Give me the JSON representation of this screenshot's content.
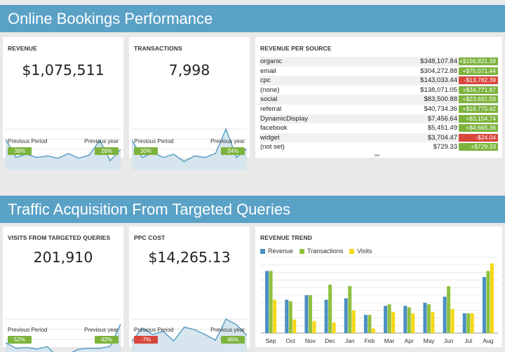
{
  "section1": {
    "title": "Online Bookings Performance"
  },
  "section2": {
    "title": "Traffic Acquisition From Targeted Queries"
  },
  "colors": {
    "header": "#5aa1c6",
    "spark_line": "#5d9fc4",
    "spark_fill": "#d6e5ee",
    "positive": "#7cb33c",
    "negative": "#d9463b",
    "revenue": "#4a8fc2",
    "transactions": "#8fc13e",
    "visits": "#f5d816"
  },
  "revenue": {
    "title": "REVENUE",
    "value": "$1,075,511",
    "prev_period_label": "Previous Period",
    "prev_period_value": "39%",
    "prev_period_sign": "pos",
    "prev_year_label": "Previous year",
    "prev_year_value": "26%",
    "prev_year_sign": "pos",
    "spark": [
      0.75,
      0.3,
      0.38,
      0.3,
      0.34,
      0.28,
      0.4,
      0.28,
      0.36,
      0.72,
      0.22,
      0.5
    ]
  },
  "transactions": {
    "title": "TRANSACTIONS",
    "value": "7,998",
    "prev_period_label": "Previous Period",
    "prev_period_value": "30%",
    "prev_period_sign": "pos",
    "prev_year_label": "Previous year",
    "prev_year_value": "34%",
    "prev_year_sign": "pos",
    "spark": [
      0.72,
      0.3,
      0.42,
      0.3,
      0.38,
      0.2,
      0.34,
      0.3,
      0.4,
      1.0,
      0.3,
      0.52
    ]
  },
  "visits_targeted": {
    "title": "VISITS FROM TARGETED QUERIES",
    "value": "201,910",
    "prev_period_label": "Previous Period",
    "prev_period_value": "52%",
    "prev_period_sign": "pos",
    "prev_year_label": "Previous year",
    "prev_year_value": "42%",
    "prev_year_sign": "pos",
    "spark": [
      0.42,
      0.28,
      0.3,
      0.26,
      0.32,
      0.06,
      0.14,
      0.26,
      0.28,
      0.28,
      0.33,
      0.88
    ]
  },
  "ppc_cost": {
    "title": "PPC COST",
    "value": "$14,265.13",
    "prev_period_label": "Previous Period",
    "prev_period_value": "-7%",
    "prev_period_sign": "neg",
    "prev_year_label": "Previous year",
    "prev_year_value": "46%",
    "prev_year_sign": "pos",
    "spark": [
      0.45,
      0.78,
      0.62,
      0.7,
      0.46,
      0.8,
      0.74,
      0.62,
      0.48,
      1.0,
      0.86,
      0.6
    ]
  },
  "revenue_per_source": {
    "title": "REVENUE PER SOURCE",
    "rows": [
      {
        "name": "organic",
        "value": "$348,107.84",
        "delta": "+$156,821.39",
        "sign": "pos"
      },
      {
        "name": "email",
        "value": "$304,272.88",
        "delta": "+$75,071.44",
        "sign": "pos"
      },
      {
        "name": "cpc",
        "value": "$143,033.44",
        "delta": "-$13,782.39",
        "sign": "neg"
      },
      {
        "name": "(none)",
        "value": "$138,071.05",
        "delta": "+$34,771.87",
        "sign": "pos"
      },
      {
        "name": "social",
        "value": "$83,500.88",
        "delta": "+$23,691.59",
        "sign": "pos"
      },
      {
        "name": "referral",
        "value": "$40,734.36",
        "delta": "+$18,775.42",
        "sign": "pos"
      },
      {
        "name": "DynamicDisplay",
        "value": "$7,456.64",
        "delta": "+$3,154.74",
        "sign": "pos"
      },
      {
        "name": "facebook",
        "value": "$5,451.49",
        "delta": "+$4,665.36",
        "sign": "pos"
      },
      {
        "name": "widget",
        "value": "$3,704.47",
        "delta": "-$24.04",
        "sign": "neg"
      },
      {
        "name": "(not set)",
        "value": "$729.33",
        "delta": "+$729.33",
        "sign": "pos"
      }
    ]
  },
  "revenue_trend": {
    "title": "REVENUE TREND",
    "chart_data": {
      "type": "bar",
      "categories": [
        "Sep",
        "Oct",
        "Nov",
        "Dec",
        "Jan",
        "Feb",
        "Mar",
        "Apr",
        "May",
        "Jun",
        "Jul",
        "Aug"
      ],
      "series": [
        {
          "name": "Revenue",
          "values": [
            0.82,
            0.44,
            0.5,
            0.44,
            0.46,
            0.24,
            0.36,
            0.36,
            0.4,
            0.48,
            0.26,
            0.74
          ]
        },
        {
          "name": "Transactions",
          "values": [
            0.82,
            0.42,
            0.5,
            0.64,
            0.62,
            0.24,
            0.38,
            0.34,
            0.38,
            0.62,
            0.26,
            0.82
          ]
        },
        {
          "name": "Visits",
          "values": [
            0.44,
            0.18,
            0.16,
            0.14,
            0.3,
            0.06,
            0.28,
            0.26,
            0.28,
            0.32,
            0.26,
            0.92
          ]
        }
      ],
      "ylim": [
        0,
        1
      ],
      "grid": true,
      "legend": "top-left"
    }
  }
}
